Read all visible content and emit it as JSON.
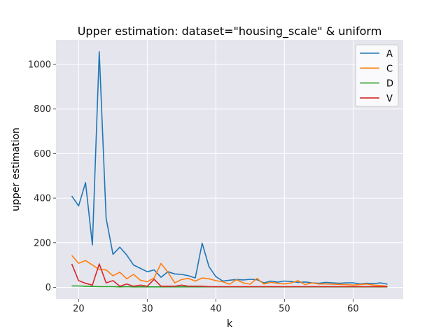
{
  "chart_data": {
    "type": "line",
    "title": "Upper estimation: dataset=\"housing_scale\" & uniform",
    "xlabel": "k",
    "ylabel": "upper estimation",
    "xlim": [
      16.7,
      67.3
    ],
    "ylim": [
      -52,
      1110
    ],
    "xticks": [
      20,
      30,
      40,
      50,
      60
    ],
    "yticks": [
      0,
      200,
      400,
      600,
      800,
      1000
    ],
    "grid": true,
    "legend_position": "top-right",
    "x": [
      19,
      20,
      21,
      22,
      23,
      24,
      25,
      26,
      27,
      28,
      29,
      30,
      31,
      32,
      33,
      34,
      35,
      36,
      37,
      38,
      39,
      40,
      41,
      42,
      43,
      44,
      45,
      46,
      47,
      48,
      49,
      50,
      51,
      52,
      53,
      54,
      55,
      56,
      57,
      58,
      59,
      60,
      61,
      62,
      63,
      64,
      65
    ],
    "series": [
      {
        "name": "A",
        "color": "#1f77b4",
        "values": [
          410,
          365,
          470,
          190,
          1057,
          310,
          148,
          180,
          145,
          100,
          85,
          70,
          78,
          45,
          70,
          60,
          58,
          52,
          42,
          198,
          92,
          48,
          28,
          32,
          35,
          33,
          36,
          34,
          20,
          28,
          23,
          28,
          26,
          22,
          24,
          20,
          18,
          22,
          20,
          18,
          20,
          20,
          15,
          18,
          16,
          20,
          14
        ]
      },
      {
        "name": "C",
        "color": "#ff7f0e",
        "values": [
          143,
          108,
          120,
          100,
          80,
          78,
          52,
          68,
          38,
          58,
          32,
          25,
          42,
          107,
          68,
          20,
          35,
          40,
          28,
          42,
          38,
          30,
          25,
          14,
          34,
          20,
          14,
          40,
          15,
          22,
          18,
          15,
          20,
          30,
          12,
          20,
          15,
          15,
          14,
          13,
          12,
          10,
          12,
          15,
          10,
          8,
          5
        ]
      },
      {
        "name": "D",
        "color": "#2ca02c",
        "values": [
          6,
          6,
          5,
          4,
          3,
          3,
          3,
          2,
          3,
          2,
          2,
          2,
          2,
          2,
          2,
          2,
          2,
          2,
          2,
          2,
          2,
          2,
          2,
          2,
          2,
          2,
          2,
          2,
          2,
          2,
          2,
          2,
          2,
          2,
          2,
          2,
          2,
          2,
          2,
          2,
          2,
          2,
          2,
          2,
          2,
          2,
          2
        ]
      },
      {
        "name": "V",
        "color": "#d62728",
        "values": [
          105,
          30,
          18,
          10,
          105,
          20,
          30,
          5,
          15,
          5,
          10,
          5,
          36,
          5,
          5,
          5,
          10,
          5,
          5,
          5,
          3,
          3,
          3,
          3,
          3,
          3,
          3,
          3,
          3,
          3,
          3,
          3,
          3,
          3,
          3,
          3,
          3,
          3,
          3,
          3,
          3,
          3,
          3,
          3,
          3,
          3,
          3
        ]
      }
    ]
  }
}
